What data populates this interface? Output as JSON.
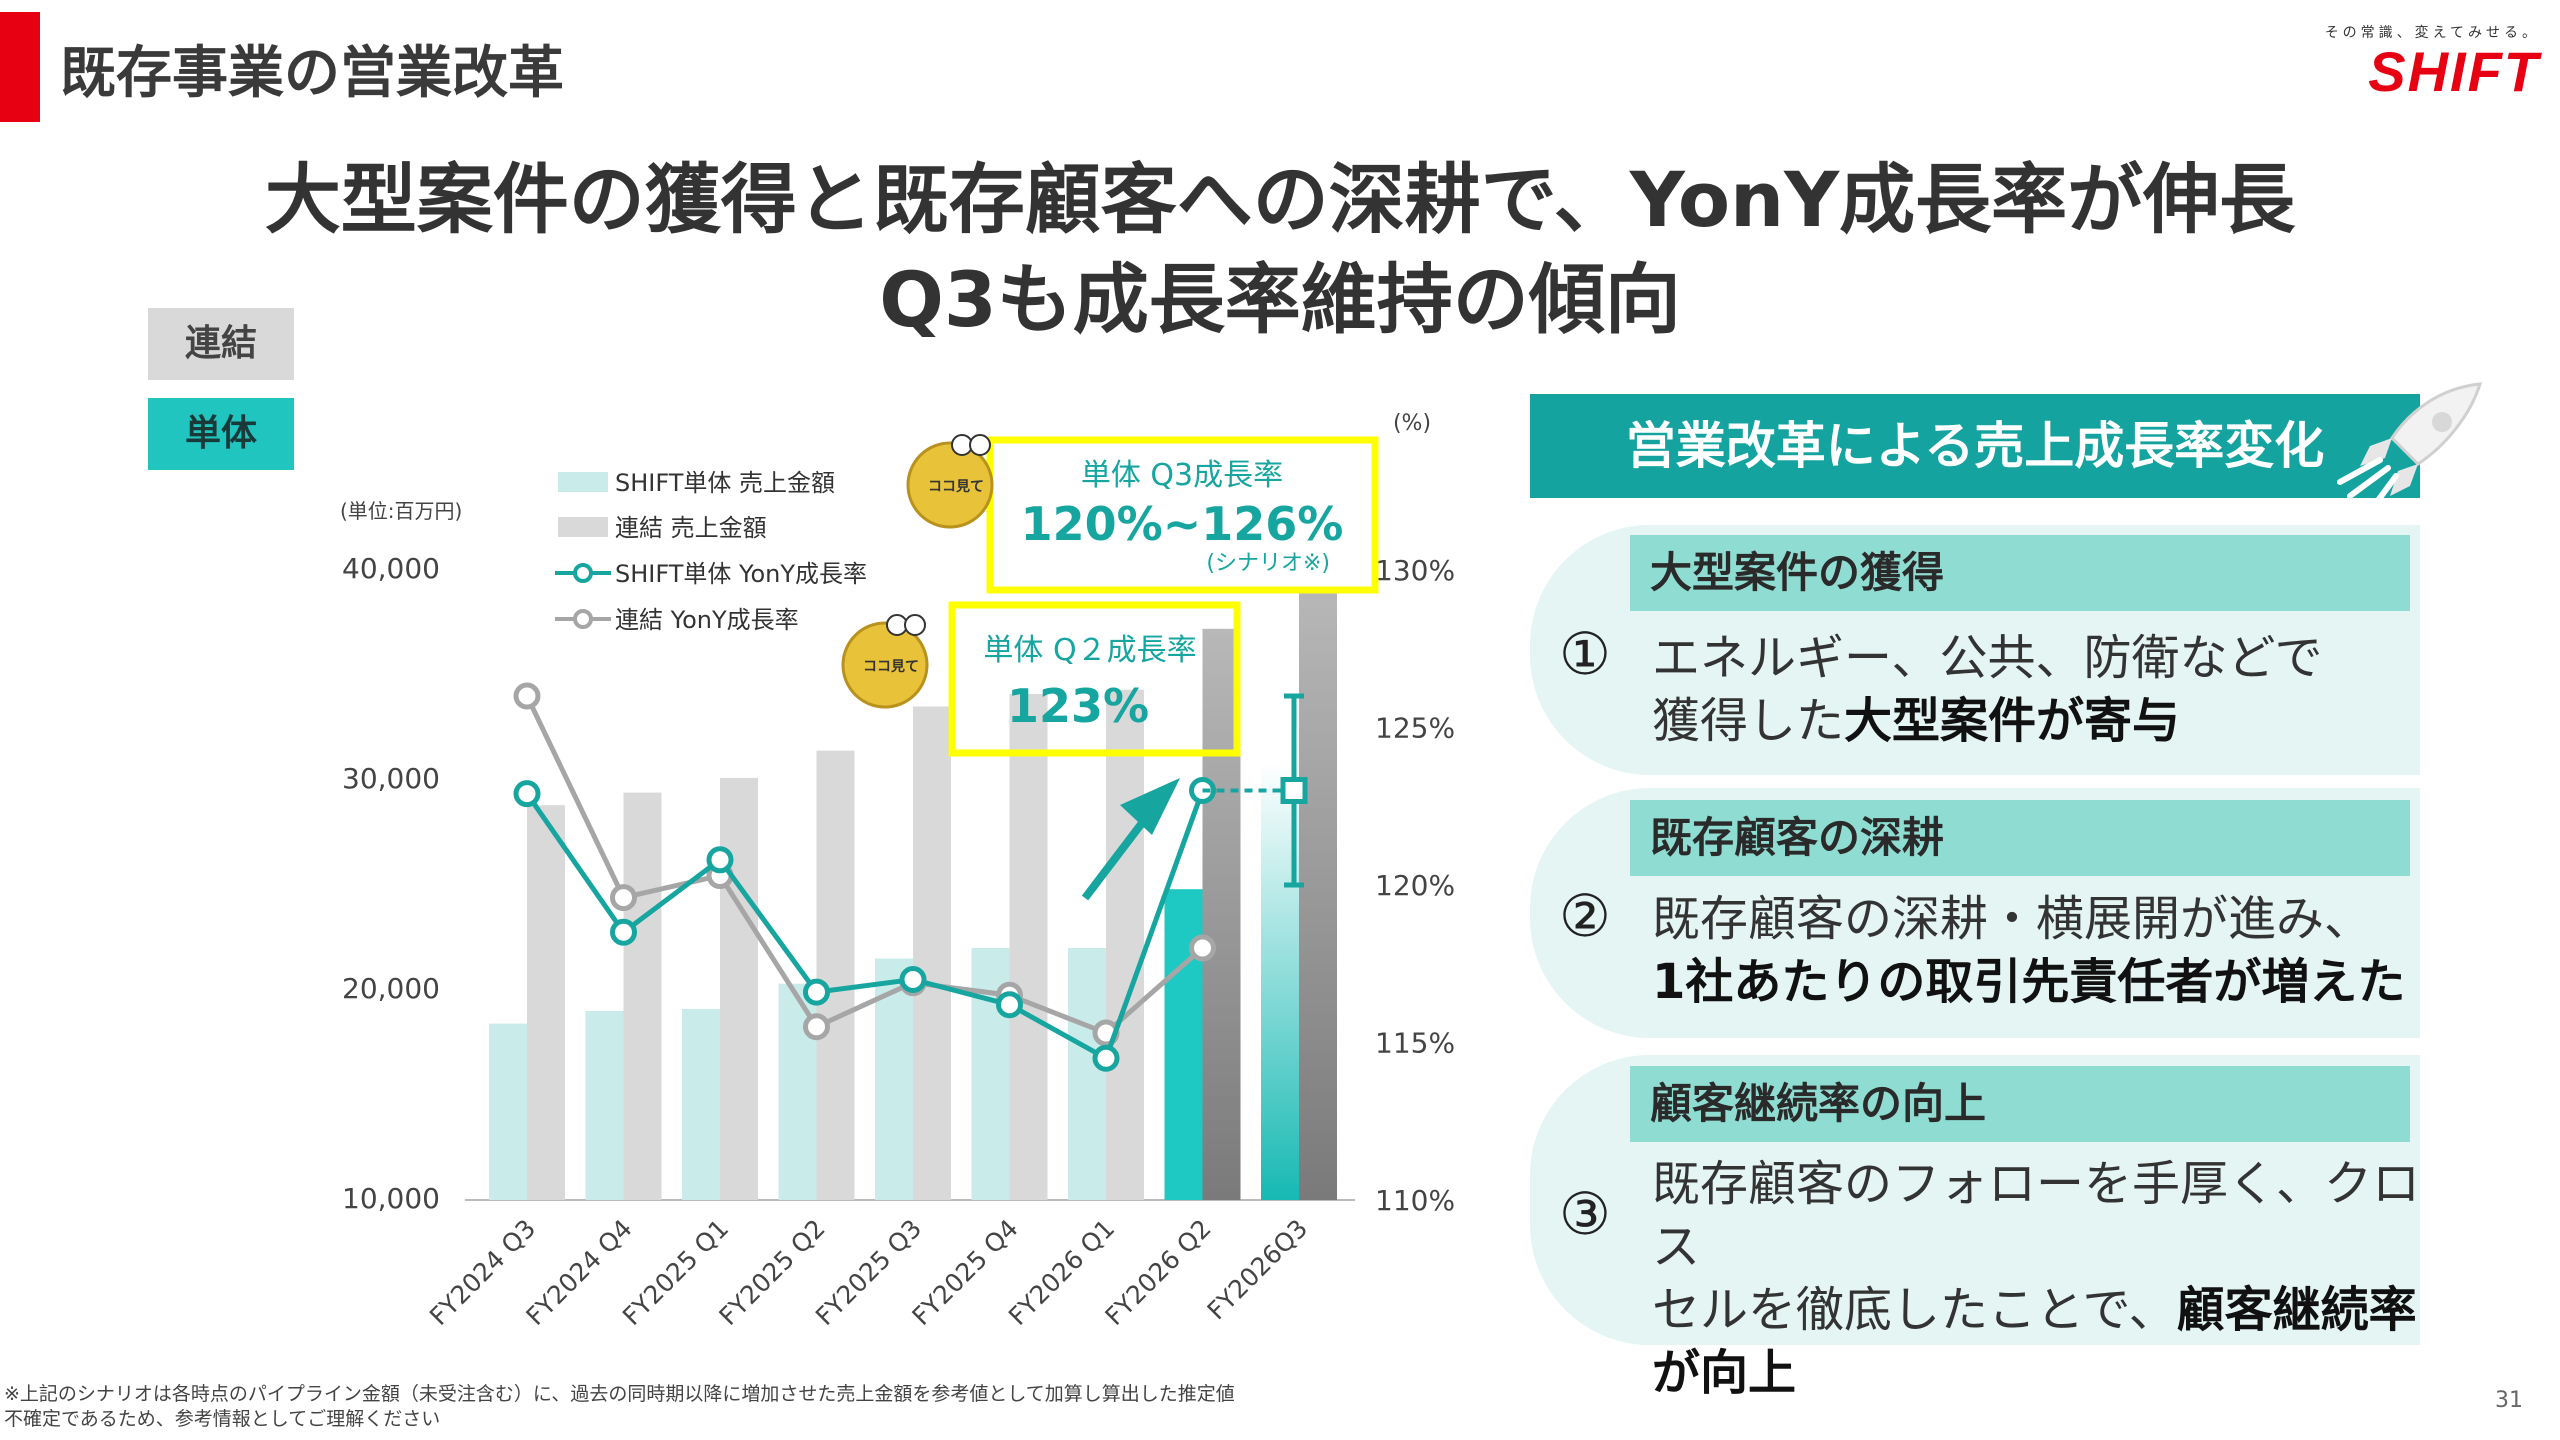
{
  "header": {
    "section_title": "既存事業の営業改革",
    "tagline": "その常識、変えてみせる。",
    "logo_text": "SHIFT",
    "headline_line1": "大型案件の獲得と既存顧客への深耕で、YonY成長率が伸長",
    "headline_line2": "Q3も成長率維持の傾向"
  },
  "tags": {
    "consolidated": "連結",
    "standalone": "単体"
  },
  "chart_data": {
    "type": "bar",
    "categories": [
      "FY2024 Q3",
      "FY2024 Q4",
      "FY2025 Q1",
      "FY2025 Q2",
      "FY2025 Q3",
      "FY2025 Q4",
      "FY2026 Q1",
      "FY2026 Q2",
      "FY2026Q3"
    ],
    "unit_label": "(単位:百万円)",
    "y_ticks": [
      "40,000",
      "30,000",
      "20,000",
      "10,000"
    ],
    "ylim": [
      10000,
      40000
    ],
    "y2_unit": "(%)",
    "y2_ticks": [
      "130%",
      "125%",
      "120%",
      "115%",
      "110%"
    ],
    "y2lim": [
      110,
      130
    ],
    "series": [
      {
        "name": "SHIFT単体 売上金額",
        "kind": "bar",
        "color": "#c9ecea",
        "highlight_color": "#1ec9c3",
        "values": [
          18400,
          19000,
          19100,
          20300,
          21500,
          22000,
          22000,
          24800,
          null
        ]
      },
      {
        "name": "連結 売上金額",
        "kind": "bar",
        "color": "#d9d9d9",
        "highlight_color": "#9a9a9a",
        "values": [
          28800,
          29400,
          30100,
          31400,
          33500,
          34100,
          34300,
          37200,
          39500
        ]
      },
      {
        "name": "SHIFT単体 YonY成長率",
        "kind": "line",
        "axis": "right",
        "color": "#17a5a0",
        "values": [
          122.9,
          118.5,
          120.8,
          116.6,
          117.0,
          116.2,
          114.5,
          123.0,
          123.0
        ]
      },
      {
        "name": "連結 YonY成長率",
        "kind": "line",
        "axis": "right",
        "color": "#a6a6a6",
        "values": [
          126.0,
          119.6,
          120.3,
          115.5,
          116.9,
          116.5,
          115.3,
          118.0,
          null
        ]
      }
    ],
    "scenario_range": [
      120,
      126
    ],
    "annotations": {
      "q3_title": "単体 Q3成長率",
      "q3_value": "120%~126%",
      "q3_note": "(シナリオ※)",
      "q2_title": "単体 Q２成長率",
      "q2_value": "123%",
      "badge_text": "ココ見て"
    }
  },
  "panel": {
    "title": "営業改革による売上成長率変化",
    "items": [
      {
        "number": "①",
        "label": "大型案件の獲得",
        "line1": "エネルギー、公共、防衛などで",
        "line2_plain": "獲得した",
        "line2_bold": "大型案件が寄与"
      },
      {
        "number": "②",
        "label": "既存顧客の深耕",
        "line1": "既存顧客の深耕・横展開が進み、",
        "line2_bold": "1社あたりの取引先責任者が増えた"
      },
      {
        "number": "③",
        "label": "顧客継続率の向上",
        "line1": "既存顧客のフォローを手厚く、クロス",
        "line2_plain": "セルを徹底したことで、",
        "line2_bold": "顧客継続率",
        "line3_bold": "が向上"
      }
    ]
  },
  "footnote": {
    "line1": "※上記のシナリオは各時点のパイプライン金額（未受注含む）に、過去の同時期以降に増加させた売上金額を参考値として加算し算出した推定値",
    "line2": "不確定であるため、参考情報としてご理解ください"
  },
  "page_number": "31",
  "colors": {
    "accent_red": "#e60012",
    "teal": "#14a39f",
    "teal_light": "#8fdcd2",
    "annotation_yellow": "#ffff00"
  }
}
